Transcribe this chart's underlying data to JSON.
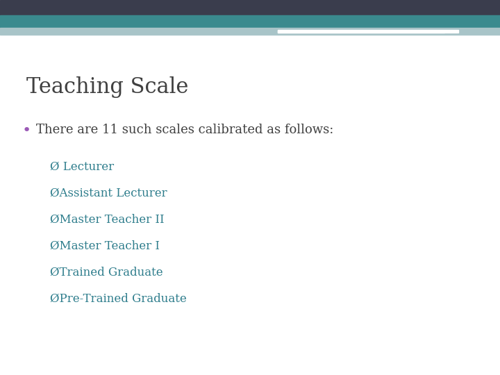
{
  "title": "Teaching Scale",
  "title_fontsize": 22,
  "title_color": "#404040",
  "bullet_text": "There are 11 such scales calibrated as follows:",
  "bullet_color": "#404040",
  "bullet_fontsize": 13,
  "bullet_dot_color": "#9B59B6",
  "sub_items": [
    "Ø Lecturer",
    "ØAssistant Lecturer",
    "ØMaster Teacher II",
    "ØMaster Teacher I",
    "ØTrained Graduate",
    "ØPre-Trained Graduate"
  ],
  "sub_item_color": "#2E7D8C",
  "sub_item_fontsize": 12,
  "background_color": "#ffffff",
  "header_dark_color": "#3A3D4D",
  "header_teal_color": "#3A8A8E",
  "header_light_color": "#A8C4C8",
  "header_white_bar": "#ffffff"
}
